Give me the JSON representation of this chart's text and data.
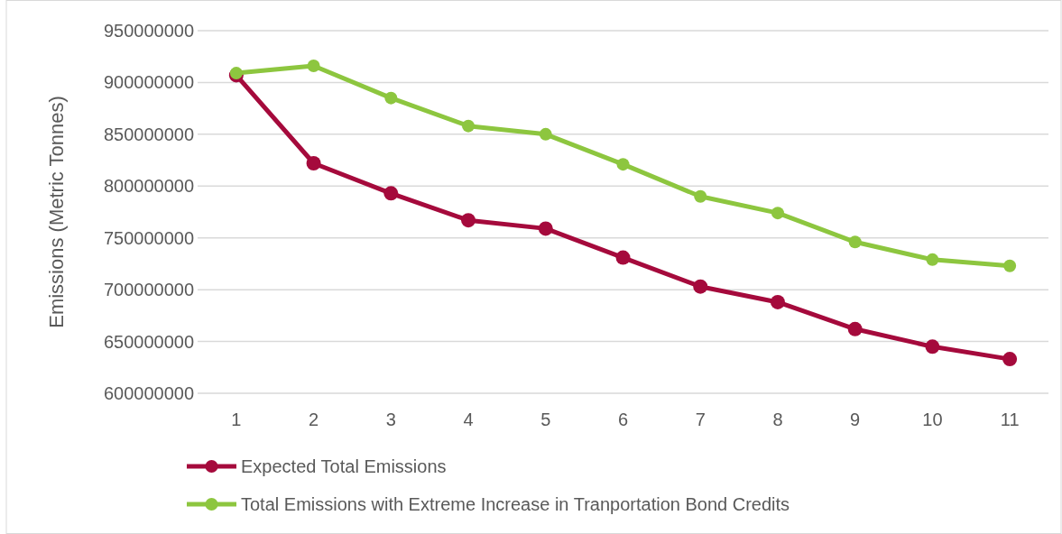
{
  "chart_data": {
    "type": "line",
    "ylabel": "Emissions (Metric Tonnes)",
    "categories": [
      "1",
      "2",
      "3",
      "4",
      "5",
      "6",
      "7",
      "8",
      "9",
      "10",
      "11"
    ],
    "series": [
      {
        "name": "Expected Total Emissions",
        "color": "#a50a3c",
        "values": [
          907000000,
          822000000,
          793000000,
          767000000,
          759000000,
          731000000,
          703000000,
          688000000,
          662000000,
          645000000,
          633000000
        ]
      },
      {
        "name": "Total Emissions with Extreme Increase in Tranportation Bond Credits",
        "color": "#8dc63f",
        "values": [
          909000000,
          916000000,
          885000000,
          858000000,
          850000000,
          821000000,
          790000000,
          774000000,
          746000000,
          729000000,
          723000000
        ]
      }
    ],
    "ylim": [
      600000000,
      950000000
    ],
    "yticks": [
      600000000,
      650000000,
      700000000,
      750000000,
      800000000,
      850000000,
      900000000,
      950000000
    ],
    "grid": "y",
    "legend": "bottom",
    "marker": "circle",
    "line_style": "solid"
  }
}
